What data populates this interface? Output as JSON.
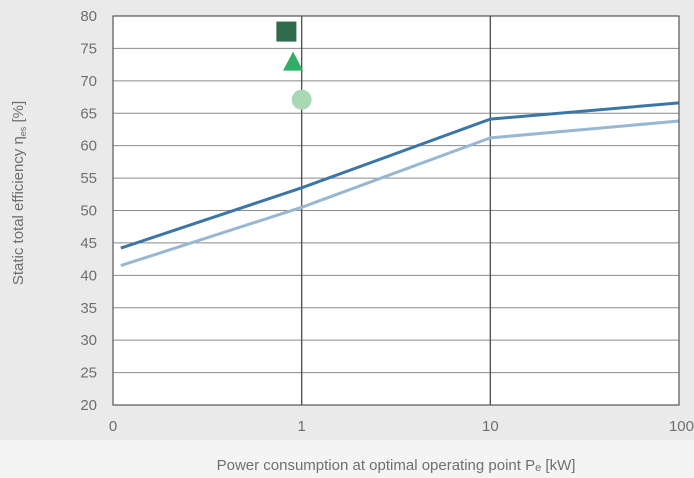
{
  "chart_data": {
    "type": "line",
    "xlabel_main": "Power consumption at optimal operating point P",
    "xlabel_sub": "e",
    "xlabel_unit": " [kW]",
    "ylabel_main": "Static total efficiency η",
    "ylabel_sub": "es",
    "ylabel_unit": " [%]",
    "x_scale": "log",
    "x_ticks": [
      {
        "value": 0.1,
        "label": "0"
      },
      {
        "value": 1,
        "label": "1"
      },
      {
        "value": 10,
        "label": "10"
      },
      {
        "value": 100,
        "label": "100"
      }
    ],
    "ylim": [
      20,
      80
    ],
    "y_ticks": [
      20,
      25,
      30,
      35,
      40,
      45,
      50,
      55,
      60,
      65,
      70,
      75,
      80
    ],
    "grid": {
      "horizontal": true,
      "vertical_at": [
        1,
        10
      ]
    },
    "series": [
      {
        "color": "#3b76a6",
        "points": [
          [
            0.11,
            44.2
          ],
          [
            1,
            53.5
          ],
          [
            10,
            64.1
          ],
          [
            100,
            66.6
          ]
        ]
      },
      {
        "color": "#98b7d3",
        "points": [
          [
            0.11,
            41.5
          ],
          [
            1,
            50.5
          ],
          [
            10,
            61.2
          ],
          [
            100,
            63.8
          ]
        ]
      }
    ],
    "markers": [
      {
        "shape": "square",
        "color": "#2e6b4b",
        "x": 0.83,
        "y": 77.6
      },
      {
        "shape": "triangle",
        "color": "#2fae65",
        "x": 0.9,
        "y": 72.8
      },
      {
        "shape": "circle",
        "color": "#a8d8b4",
        "x": 1.0,
        "y": 67.1
      }
    ]
  }
}
